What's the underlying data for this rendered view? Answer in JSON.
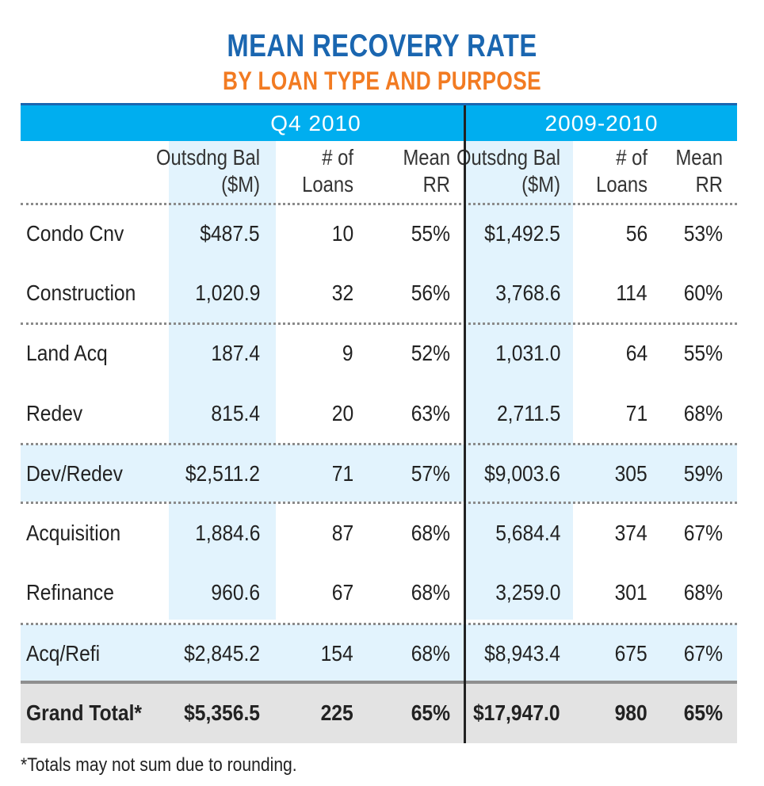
{
  "title": "MEAN RECOVERY RATE",
  "subtitle": "BY LOAN TYPE AND PURPOSE",
  "footnote": "*Totals may not sum due to rounding.",
  "colors": {
    "title": "#1a66b0",
    "subtitle": "#f27b22",
    "band": "#00aeef",
    "shade": "#e2f3fd",
    "grand_total_bg": "#e3e3e3"
  },
  "chart_data": {
    "type": "table",
    "title": "MEAN RECOVERY RATE",
    "subtitle": "BY LOAN TYPE AND PURPOSE",
    "groups": [
      "Q4 2010",
      "2009-2010"
    ],
    "columns": [
      "Outsdng Bal ($M)",
      "# of Loans",
      "Mean RR",
      "Outsdng Bal ($M)",
      "# of Loans",
      "Mean RR"
    ],
    "rows": [
      {
        "label": "Condo Cnv",
        "values": [
          "$487.5",
          "10",
          "55%",
          "$1,492.5",
          "56",
          "53%"
        ]
      },
      {
        "label": "Construction",
        "values": [
          "1,020.9",
          "32",
          "56%",
          "3,768.6",
          "114",
          "60%"
        ]
      },
      {
        "label": "Land Acq",
        "values": [
          "187.4",
          "9",
          "52%",
          "1,031.0",
          "64",
          "55%"
        ]
      },
      {
        "label": "Redev",
        "values": [
          "815.4",
          "20",
          "63%",
          "2,711.5",
          "71",
          "68%"
        ]
      },
      {
        "label": "Dev/Redev",
        "values": [
          "$2,511.2",
          "71",
          "57%",
          "$9,003.6",
          "305",
          "59%"
        ]
      },
      {
        "label": "Acquisition",
        "values": [
          "1,884.6",
          "87",
          "68%",
          "5,684.4",
          "374",
          "67%"
        ]
      },
      {
        "label": "Refinance",
        "values": [
          "960.6",
          "67",
          "68%",
          "3,259.0",
          "301",
          "68%"
        ]
      },
      {
        "label": "Acq/Refi",
        "values": [
          "$2,845.2",
          "154",
          "68%",
          "$8,943.4",
          "675",
          "67%"
        ]
      },
      {
        "label": "Grand Total*",
        "values": [
          "$5,356.5",
          "225",
          "65%",
          "$17,947.0",
          "980",
          "65%"
        ]
      }
    ]
  }
}
